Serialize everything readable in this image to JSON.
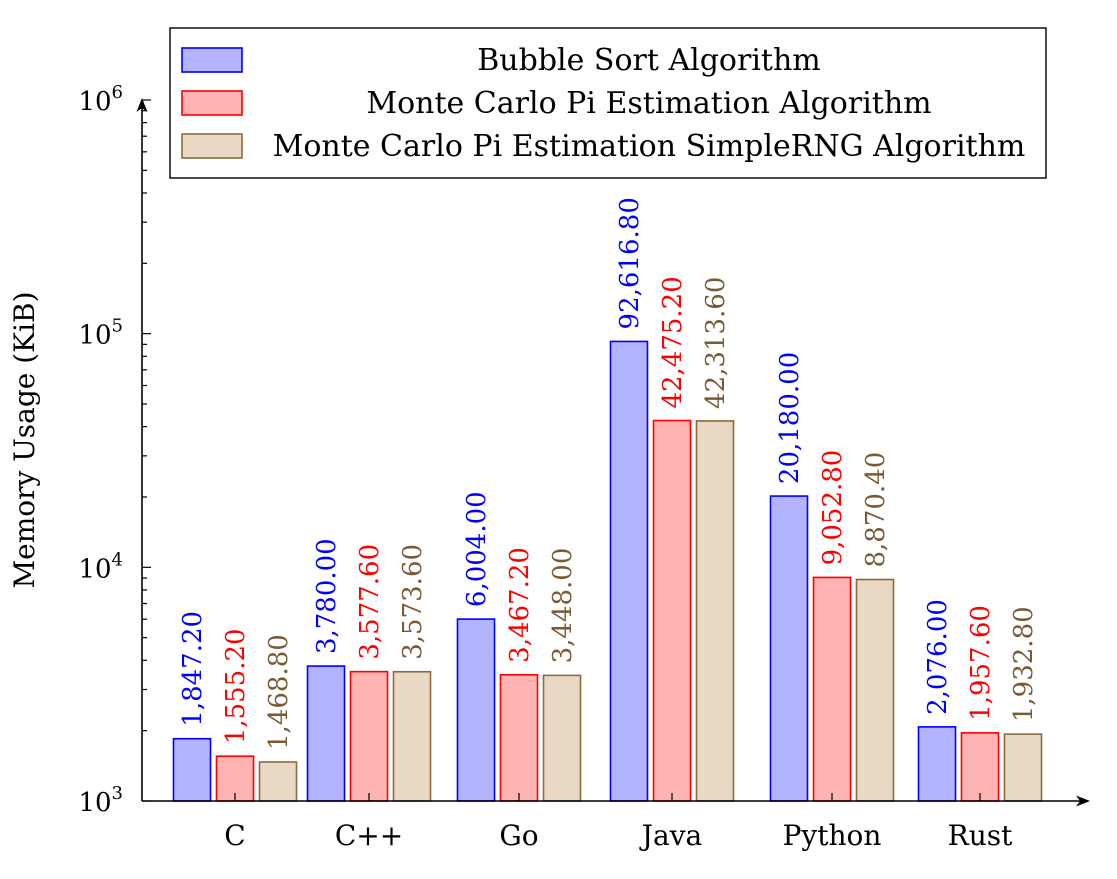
{
  "chart_data": {
    "type": "bar",
    "ylabel": "Memory Usage (KiB)",
    "xlabel": "",
    "yscale": "log",
    "ylim": [
      1000,
      1000000
    ],
    "yticks": [
      {
        "value": 1000,
        "base": "10",
        "exp": "3"
      },
      {
        "value": 10000,
        "base": "10",
        "exp": "4"
      },
      {
        "value": 100000,
        "base": "10",
        "exp": "5"
      },
      {
        "value": 1000000,
        "base": "10",
        "exp": "6"
      }
    ],
    "categories": [
      "C",
      "C++",
      "Go",
      "Java",
      "Python",
      "Rust"
    ],
    "legend_position": "top",
    "series": [
      {
        "name": "Bubble Sort Algorithm",
        "fill": "#b3b3ff",
        "stroke": "#0000ff",
        "label_color": "#0000ff",
        "values": [
          1847.2,
          3780.0,
          6004.0,
          92616.8,
          20180.0,
          2076.0
        ],
        "labels": [
          "1,847.20",
          "3,780.00",
          "6,004.00",
          "92,616.80",
          "20,180.00",
          "2,076.00"
        ]
      },
      {
        "name": "Monte Carlo Pi Estimation Algorithm",
        "fill": "#ffb3b3",
        "stroke": "#ff0000",
        "label_color": "#ff0000",
        "values": [
          1555.2,
          3577.6,
          3467.2,
          42475.2,
          9052.8,
          1957.6
        ],
        "labels": [
          "1,555.20",
          "3,577.60",
          "3,467.20",
          "42,475.20",
          "9,052.80",
          "1,957.60"
        ]
      },
      {
        "name": "Monte Carlo Pi Estimation SimpleRNG Algorithm",
        "fill": "#e8d8c4",
        "stroke": "#8c6a3e",
        "label_color": "#7a5a35",
        "values": [
          1468.8,
          3573.6,
          3448.0,
          42313.6,
          8870.4,
          1932.8
        ],
        "labels": [
          "1,468.80",
          "3,573.60",
          "3,448.00",
          "42,313.60",
          "8,870.40",
          "1,932.80"
        ]
      }
    ]
  }
}
